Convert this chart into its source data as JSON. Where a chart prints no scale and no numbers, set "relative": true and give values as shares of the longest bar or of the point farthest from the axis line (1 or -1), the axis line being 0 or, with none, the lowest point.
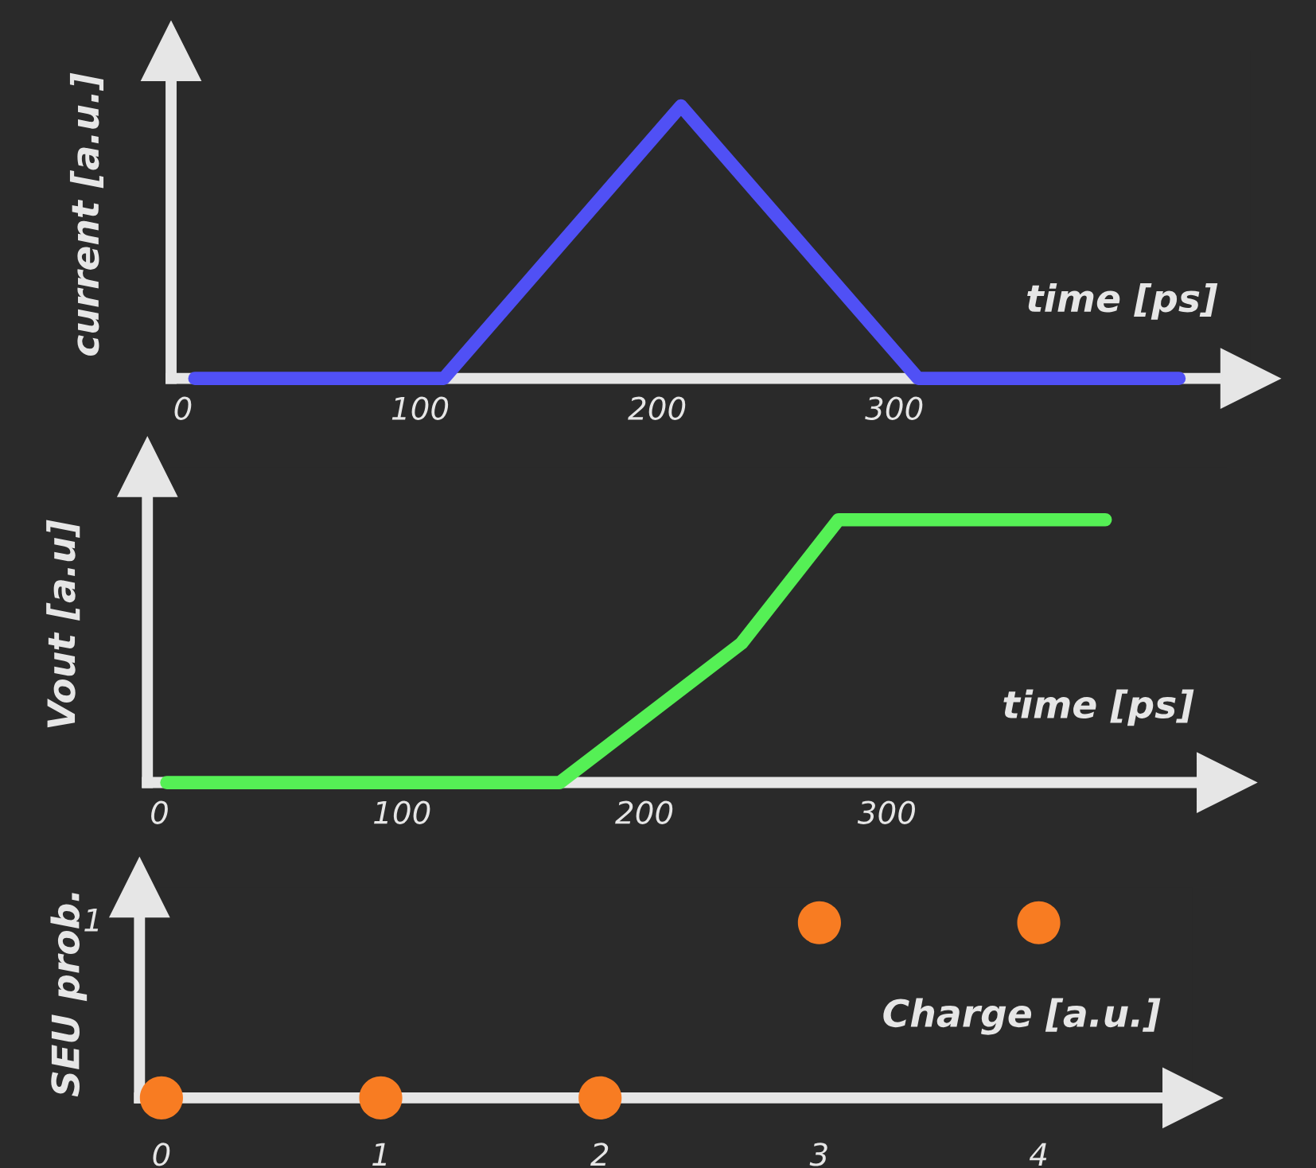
{
  "chart_data": [
    {
      "type": "line",
      "relative": true,
      "ylabel": "current [a.u.]",
      "xlabel": "time [ps]",
      "x": [
        5,
        110,
        210,
        310,
        420
      ],
      "xlim": [
        -5,
        450
      ],
      "xticks": [
        0,
        100,
        200,
        300
      ],
      "grid": false,
      "legend": false,
      "marker": "none",
      "line_style": "solid",
      "series": [
        {
          "color": "#5050f5",
          "values": [
            0,
            0,
            1,
            0,
            0
          ]
        }
      ]
    },
    {
      "type": "line",
      "relative": true,
      "ylabel": "Vout [a.u]",
      "xlabel": "time [ps]",
      "x": [
        3,
        165,
        240,
        280,
        390
      ],
      "xlim": [
        -5,
        440
      ],
      "xticks": [
        0,
        100,
        200,
        300
      ],
      "grid": false,
      "legend": false,
      "marker": "none",
      "line_style": "solid",
      "series": [
        {
          "color": "#55f055",
          "values": [
            0,
            0,
            0.53,
            1,
            1
          ]
        }
      ]
    },
    {
      "type": "scatter",
      "ylabel": "SEU prob.",
      "xlabel": "Charge [a.u.]",
      "x": [
        0,
        1,
        2,
        3,
        4
      ],
      "xlim": [
        -0.1,
        4.7
      ],
      "xticks": [
        0,
        1,
        2,
        3,
        4
      ],
      "relative": true,
      "annotations": [
        "1"
      ],
      "grid": false,
      "legend": false,
      "marker": "circle",
      "series": [
        {
          "color": "#f87c22",
          "values": [
            0,
            0,
            0,
            1,
            1
          ]
        }
      ]
    }
  ]
}
